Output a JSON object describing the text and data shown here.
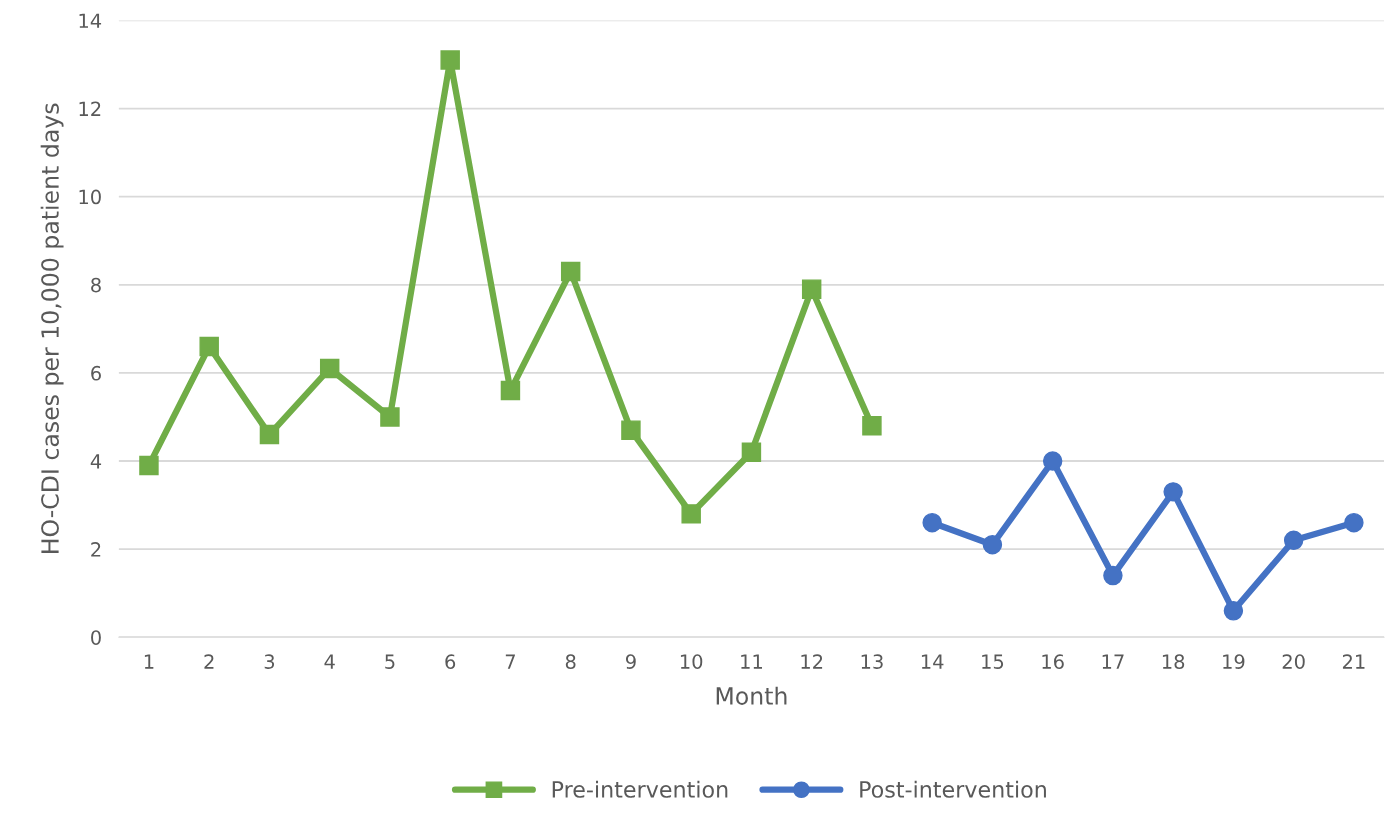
{
  "chart_data": {
    "type": "line",
    "xlabel": "Month",
    "ylabel": "HO-CDI cases per 10,000 patient days",
    "categories": [
      "1",
      "2",
      "3",
      "4",
      "5",
      "6",
      "7",
      "8",
      "9",
      "10",
      "11",
      "12",
      "13",
      "14",
      "15",
      "16",
      "17",
      "18",
      "19",
      "20",
      "21"
    ],
    "series": [
      {
        "name": "Pre-intervention",
        "color": "#70ad47",
        "marker": "square",
        "values": [
          3.9,
          6.6,
          4.6,
          6.1,
          5.0,
          13.1,
          5.6,
          8.3,
          4.7,
          2.8,
          4.2,
          7.9,
          4.8,
          null,
          null,
          null,
          null,
          null,
          null,
          null,
          null
        ]
      },
      {
        "name": "Post-intervention",
        "color": "#4472c4",
        "marker": "circle",
        "values": [
          null,
          null,
          null,
          null,
          null,
          null,
          null,
          null,
          null,
          null,
          null,
          null,
          null,
          2.6,
          2.1,
          4.0,
          1.4,
          3.3,
          0.6,
          2.2,
          2.6
        ]
      }
    ],
    "ylim": [
      0,
      14
    ],
    "yticks": [
      0,
      2,
      4,
      6,
      8,
      10,
      12,
      14
    ],
    "grid": "y",
    "legend": "bottom",
    "line_style": "solid"
  }
}
